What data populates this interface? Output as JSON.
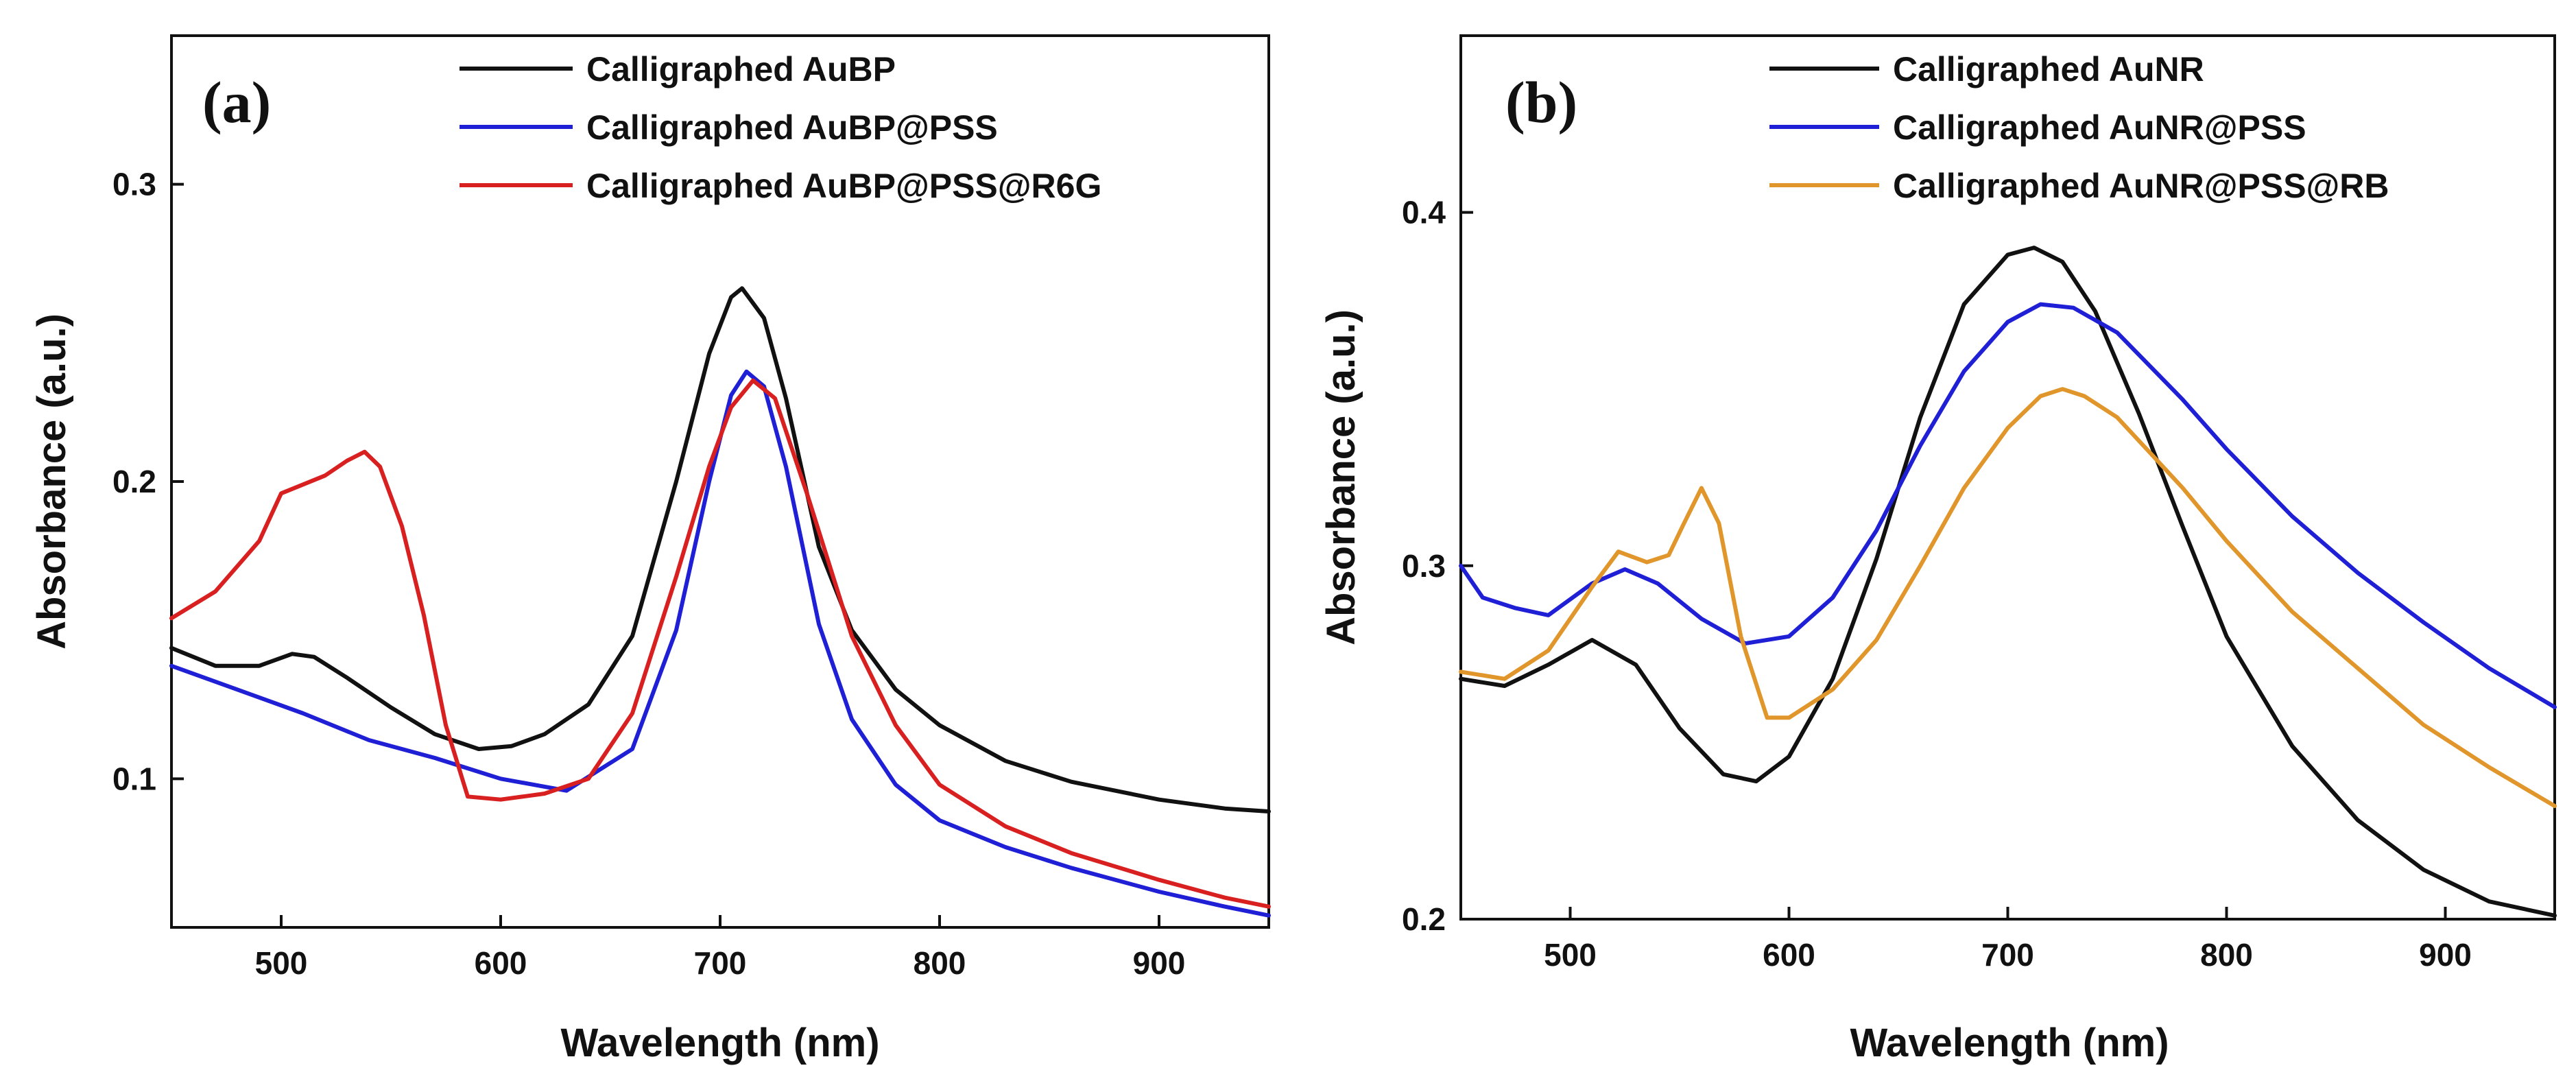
{
  "chart_data": [
    {
      "type": "line",
      "panel_label": "(a)",
      "xlabel": "Wavelength (nm)",
      "ylabel": "Absorbance (a.u.)",
      "xlim": [
        450,
        950
      ],
      "ylim": [
        0.05,
        0.35
      ],
      "xticks": [
        500,
        600,
        700,
        800,
        900
      ],
      "yticks": [
        0.1,
        0.2,
        0.3
      ],
      "ytick_labels": [
        "0.1",
        "0.2",
        "0.3"
      ],
      "grid": false,
      "legend_position": "top-right",
      "series": [
        {
          "name": "Calligraphed AuBP",
          "color": "#111111",
          "x": [
            450,
            470,
            490,
            505,
            515,
            530,
            550,
            570,
            590,
            605,
            620,
            640,
            660,
            680,
            695,
            705,
            710,
            720,
            730,
            745,
            760,
            780,
            800,
            830,
            860,
            900,
            930,
            950
          ],
          "y": [
            0.144,
            0.138,
            0.138,
            0.142,
            0.141,
            0.134,
            0.124,
            0.115,
            0.11,
            0.111,
            0.115,
            0.125,
            0.148,
            0.2,
            0.243,
            0.262,
            0.265,
            0.255,
            0.228,
            0.178,
            0.15,
            0.13,
            0.118,
            0.106,
            0.099,
            0.093,
            0.09,
            0.089
          ]
        },
        {
          "name": "Calligraphed AuBP@PSS",
          "color": "#1f1fd6",
          "x": [
            450,
            480,
            510,
            540,
            570,
            600,
            630,
            660,
            680,
            695,
            705,
            712,
            720,
            730,
            745,
            760,
            780,
            800,
            830,
            860,
            900,
            930,
            950
          ],
          "y": [
            0.138,
            0.13,
            0.122,
            0.113,
            0.107,
            0.1,
            0.096,
            0.11,
            0.15,
            0.2,
            0.229,
            0.237,
            0.232,
            0.205,
            0.152,
            0.12,
            0.098,
            0.086,
            0.077,
            0.07,
            0.062,
            0.057,
            0.054
          ]
        },
        {
          "name": "Calligraphed AuBP@PSS@R6G",
          "color": "#d92020",
          "x": [
            450,
            470,
            490,
            500,
            510,
            520,
            530,
            538,
            545,
            555,
            565,
            575,
            585,
            600,
            620,
            640,
            660,
            680,
            695,
            705,
            715,
            725,
            740,
            760,
            780,
            800,
            830,
            860,
            900,
            930,
            950
          ],
          "y": [
            0.154,
            0.163,
            0.18,
            0.196,
            0.199,
            0.202,
            0.207,
            0.21,
            0.205,
            0.185,
            0.155,
            0.118,
            0.094,
            0.093,
            0.095,
            0.1,
            0.122,
            0.168,
            0.205,
            0.225,
            0.234,
            0.228,
            0.195,
            0.148,
            0.118,
            0.098,
            0.084,
            0.075,
            0.066,
            0.06,
            0.057
          ]
        }
      ]
    },
    {
      "type": "line",
      "panel_label": "(b)",
      "xlabel": "Wavelength (nm)",
      "ylabel": "Absorbance (a.u.)",
      "xlim": [
        450,
        950
      ],
      "ylim": [
        0.2,
        0.45
      ],
      "xticks": [
        500,
        600,
        700,
        800,
        900
      ],
      "yticks": [
        0.2,
        0.3,
        0.4
      ],
      "ytick_labels": [
        "0.2",
        "0.3",
        "0.4"
      ],
      "grid": false,
      "legend_position": "top-right",
      "series": [
        {
          "name": "Calligraphed AuNR",
          "color": "#111111",
          "x": [
            450,
            470,
            490,
            510,
            530,
            550,
            570,
            585,
            600,
            620,
            640,
            660,
            680,
            700,
            712,
            725,
            740,
            760,
            780,
            800,
            830,
            860,
            890,
            920,
            950
          ],
          "y": [
            0.268,
            0.266,
            0.272,
            0.279,
            0.272,
            0.254,
            0.241,
            0.239,
            0.246,
            0.268,
            0.302,
            0.342,
            0.374,
            0.388,
            0.39,
            0.386,
            0.372,
            0.343,
            0.311,
            0.28,
            0.249,
            0.228,
            0.214,
            0.205,
            0.201
          ]
        },
        {
          "name": "Calligraphed AuNR@PSS",
          "color": "#1f1fd6",
          "x": [
            450,
            460,
            475,
            490,
            510,
            525,
            540,
            560,
            580,
            600,
            620,
            640,
            660,
            680,
            700,
            715,
            730,
            750,
            780,
            800,
            830,
            860,
            890,
            920,
            950
          ],
          "y": [
            0.3,
            0.291,
            0.288,
            0.286,
            0.295,
            0.299,
            0.295,
            0.285,
            0.278,
            0.28,
            0.291,
            0.31,
            0.334,
            0.355,
            0.369,
            0.374,
            0.373,
            0.366,
            0.347,
            0.333,
            0.314,
            0.298,
            0.284,
            0.271,
            0.26
          ]
        },
        {
          "name": "Calligraphed AuNR@PSS@RB",
          "color": "#e0962a",
          "x": [
            450,
            470,
            490,
            510,
            522,
            535,
            545,
            552,
            560,
            568,
            578,
            590,
            600,
            620,
            640,
            660,
            680,
            700,
            715,
            725,
            735,
            750,
            780,
            800,
            830,
            860,
            890,
            920,
            950
          ],
          "y": [
            0.27,
            0.268,
            0.276,
            0.294,
            0.304,
            0.301,
            0.303,
            0.312,
            0.322,
            0.312,
            0.28,
            0.257,
            0.257,
            0.265,
            0.279,
            0.3,
            0.322,
            0.339,
            0.348,
            0.35,
            0.348,
            0.342,
            0.322,
            0.307,
            0.287,
            0.271,
            0.255,
            0.243,
            0.232
          ]
        }
      ]
    }
  ]
}
